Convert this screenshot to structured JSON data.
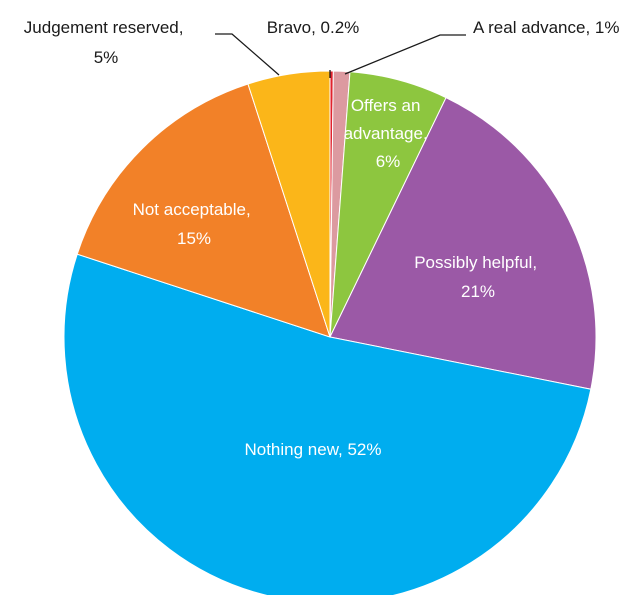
{
  "chart_data": {
    "type": "pie",
    "title": "",
    "slices": [
      {
        "label": "Bravo, 0.2%",
        "name": "Bravo",
        "value": 0.2,
        "color": "#e0222d"
      },
      {
        "label": "A real advance, 1%",
        "name": "A real advance",
        "value": 1,
        "color": "#dc9aa0"
      },
      {
        "label": [
          "Offers an",
          "advantage,",
          "6%"
        ],
        "name": "Offers an advantage",
        "value": 6,
        "color": "#8dc63f"
      },
      {
        "label": [
          "Possibly helpful,",
          "21%"
        ],
        "name": "Possibly helpful",
        "value": 21,
        "color": "#9b59a6"
      },
      {
        "label": "Nothing new, 52%",
        "name": "Nothing new",
        "value": 52,
        "color": "#00adef"
      },
      {
        "label": [
          "Not acceptable,",
          "15%"
        ],
        "name": "Not acceptable",
        "value": 15,
        "color": "#f28128"
      },
      {
        "label": [
          "Judgement reserved,",
          "5%"
        ],
        "name": "Judgement reserved",
        "value": 5,
        "color": "#fbb619"
      }
    ],
    "start_angle": "12 o'clock",
    "direction": "clockwise",
    "legend": "none (direct labels)"
  }
}
